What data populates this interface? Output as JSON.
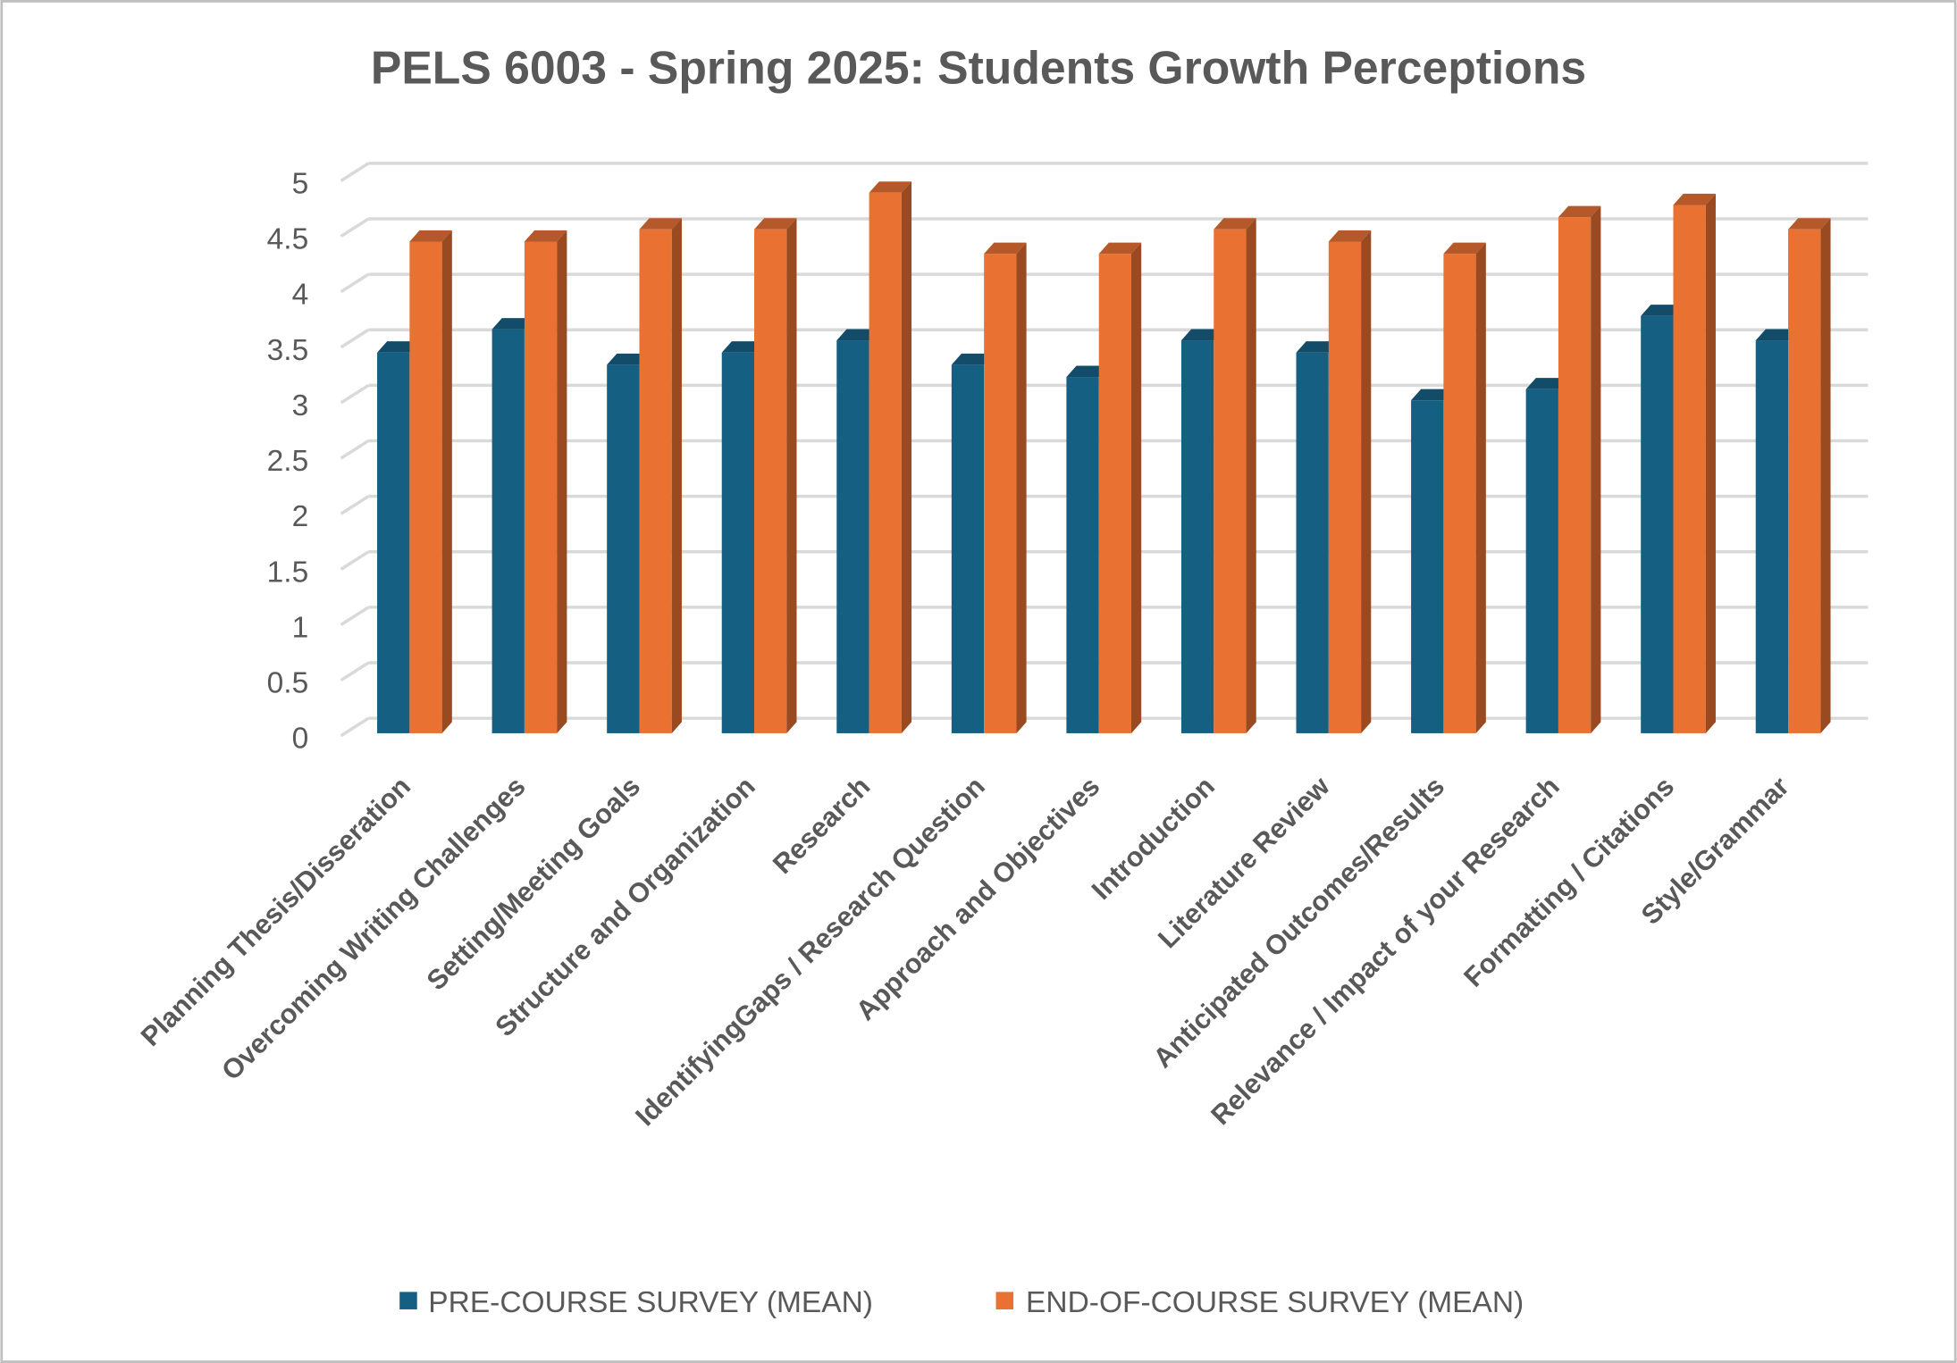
{
  "chart_data": {
    "type": "bar",
    "title": "PELS 6003 - Spring 2025: Students Growth Perceptions",
    "xlabel": "",
    "ylabel": "",
    "ylim": [
      0,
      5
    ],
    "yticks": [
      "0",
      "0.5",
      "1",
      "1.5",
      "2",
      "2.5",
      "3",
      "3.5",
      "4",
      "4.5",
      "5"
    ],
    "grid": true,
    "style": "3d-clustered-column",
    "legend_position": "bottom",
    "categories": [
      "Planning Thesis/Disseration",
      "Overcoming Writing Challenges",
      "Setting/Meeting Goals",
      "Structure and Organization",
      "Research",
      "IdentifyingGaps / Research Question",
      "Approach and Objectives",
      "Introduction",
      "Literature Review",
      "Anticipated Outcomes/Results",
      "Relevance / Impact of your Research",
      "Formatting / Citations",
      "Style/Grammar"
    ],
    "series": [
      {
        "name": "PRE-COURSE SURVEY (MEAN)",
        "color": "#156082",
        "values": [
          3.43,
          3.64,
          3.32,
          3.43,
          3.54,
          3.32,
          3.21,
          3.54,
          3.43,
          3.0,
          3.1,
          3.76,
          3.54
        ]
      },
      {
        "name": "END-OF-COURSE SURVEY (MEAN)",
        "color": "#E97132",
        "values": [
          4.43,
          4.43,
          4.54,
          4.54,
          4.87,
          4.32,
          4.32,
          4.54,
          4.43,
          4.32,
          4.65,
          4.76,
          4.54
        ]
      }
    ]
  }
}
